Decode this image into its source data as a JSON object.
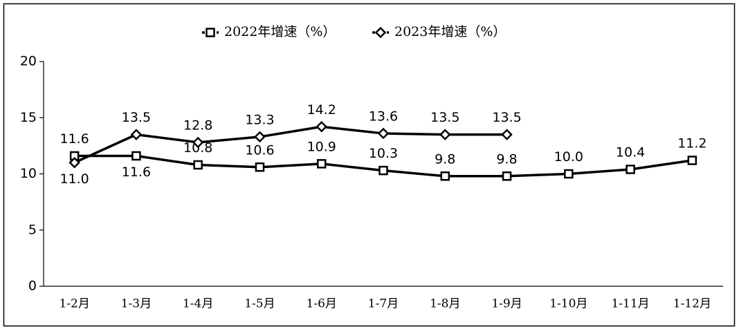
{
  "chart_data": {
    "type": "line",
    "categories": [
      "1-2月",
      "1-3月",
      "1-4月",
      "1-5月",
      "1-6月",
      "1-7月",
      "1-8月",
      "1-9月",
      "1-10月",
      "1-11月",
      "1-12月"
    ],
    "series": [
      {
        "name": "2022年增速（%）",
        "color": "#000000",
        "marker": "square",
        "values": [
          11.6,
          11.6,
          10.8,
          10.6,
          10.9,
          10.3,
          9.8,
          9.8,
          10.0,
          10.4,
          11.2
        ],
        "value_labels": [
          "11.6",
          "11.6",
          "10.8",
          "10.6",
          "10.9",
          "10.3",
          "9.8",
          "9.8",
          "10.0",
          "10.4",
          "11.2"
        ]
      },
      {
        "name": "2023年增速（%）",
        "color": "#000000",
        "marker": "diamond",
        "values": [
          11.0,
          13.5,
          12.8,
          13.3,
          14.2,
          13.6,
          13.5,
          13.5,
          null,
          null,
          null
        ],
        "value_labels": [
          "11.0",
          "13.5",
          "12.8",
          "13.3",
          "14.2",
          "13.6",
          "13.5",
          "13.5",
          null,
          null,
          null
        ]
      }
    ],
    "ylim": [
      0,
      20
    ],
    "yticks": [
      0,
      5,
      10,
      15,
      20
    ],
    "grid": false,
    "legend": "top"
  }
}
